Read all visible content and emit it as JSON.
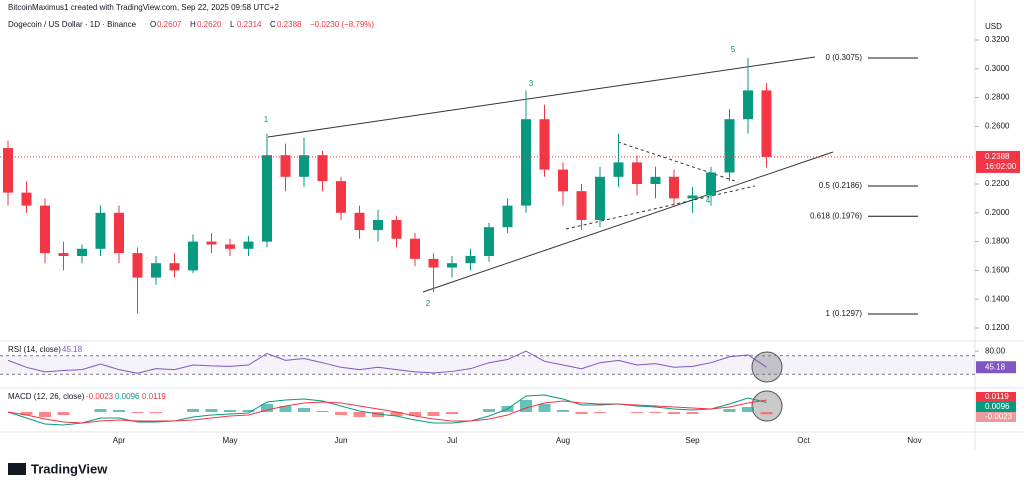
{
  "header": {
    "author": "BitcoinMaximus1 created with TradingView.com, Sep 22, 2025 09:58 UTC+2",
    "symbol": "Dogecoin / US Dollar · 1D · Binance",
    "ohlc": [
      {
        "key": "O",
        "value": "0.2607"
      },
      {
        "key": "H",
        "value": "0.2620"
      },
      {
        "key": "L",
        "value": "0.2314"
      },
      {
        "key": "C",
        "value": "0.2388"
      }
    ],
    "change": "−0.0230 (−8.79%)"
  },
  "footer": {
    "brand": "TradingView"
  },
  "chart_data": {
    "type": "candlestick",
    "currency": "USD",
    "up_color": "#089981",
    "down_color": "#f23645",
    "categories": [
      null,
      null,
      null,
      null,
      null,
      null,
      "Apr",
      null,
      null,
      null,
      null,
      null,
      "May",
      null,
      null,
      null,
      null,
      null,
      "Jun",
      null,
      null,
      null,
      null,
      null,
      "Jul",
      null,
      null,
      null,
      null,
      null,
      "Aug",
      null,
      null,
      null,
      null,
      null,
      null,
      "Sep",
      null,
      null,
      null,
      null,
      null,
      "Oct",
      null,
      null,
      null,
      null,
      null,
      "Nov",
      null,
      null
    ],
    "open": [
      0.245,
      0.214,
      0.205,
      0.172,
      0.17,
      0.175,
      0.2,
      0.172,
      0.155,
      0.165,
      0.16,
      0.18,
      0.178,
      0.175,
      0.18,
      0.24,
      0.225,
      0.24,
      0.222,
      0.2,
      0.188,
      0.195,
      0.182,
      0.168,
      0.162,
      0.165,
      0.17,
      0.19,
      0.205,
      0.265,
      0.23,
      0.215,
      0.195,
      0.225,
      0.235,
      0.22,
      0.225,
      0.21,
      0.212,
      0.228,
      0.265,
      0.285,
      null,
      null,
      null,
      null,
      null,
      null,
      null,
      null,
      null,
      null
    ],
    "high": [
      0.25,
      0.222,
      0.21,
      0.18,
      0.178,
      0.205,
      0.205,
      0.176,
      0.17,
      0.172,
      0.185,
      0.186,
      0.182,
      0.184,
      0.255,
      0.248,
      0.252,
      0.243,
      0.225,
      0.205,
      0.202,
      0.198,
      0.186,
      0.172,
      0.17,
      0.175,
      0.193,
      0.21,
      0.285,
      0.275,
      0.235,
      0.22,
      0.232,
      0.255,
      0.24,
      0.232,
      0.23,
      0.218,
      0.232,
      0.272,
      0.3075,
      0.29,
      null,
      null,
      null,
      null,
      null,
      null,
      null,
      null,
      null,
      null
    ],
    "low": [
      0.205,
      0.2,
      0.165,
      0.16,
      0.165,
      0.17,
      0.165,
      0.13,
      0.15,
      0.155,
      0.158,
      0.172,
      0.17,
      0.17,
      0.176,
      0.215,
      0.218,
      0.215,
      0.195,
      0.182,
      0.18,
      0.176,
      0.163,
      0.145,
      0.155,
      0.16,
      0.166,
      0.186,
      0.2,
      0.225,
      0.205,
      0.188,
      0.19,
      0.218,
      0.212,
      0.21,
      0.205,
      0.2,
      0.205,
      0.222,
      0.255,
      0.2314,
      null,
      null,
      null,
      null,
      null,
      null,
      null,
      null,
      null,
      null
    ],
    "close": [
      0.214,
      0.205,
      0.172,
      0.17,
      0.175,
      0.2,
      0.172,
      0.155,
      0.165,
      0.16,
      0.18,
      0.178,
      0.175,
      0.18,
      0.24,
      0.225,
      0.24,
      0.222,
      0.2,
      0.188,
      0.195,
      0.182,
      0.168,
      0.162,
      0.165,
      0.17,
      0.19,
      0.205,
      0.265,
      0.23,
      0.215,
      0.195,
      0.225,
      0.235,
      0.22,
      0.225,
      0.21,
      0.212,
      0.228,
      0.265,
      0.285,
      0.2388,
      null,
      null,
      null,
      null,
      null,
      null,
      null,
      null,
      null,
      null
    ],
    "ylim": [
      0.12,
      0.32
    ],
    "yticks": [
      {
        "value": 0.12,
        "label": "0.1200"
      },
      {
        "value": 0.14,
        "label": "0.1400"
      },
      {
        "value": 0.16,
        "label": "0.1600"
      },
      {
        "value": 0.18,
        "label": "0.1800"
      },
      {
        "value": 0.2,
        "label": "0.2000"
      },
      {
        "value": 0.22,
        "label": "0.2200"
      },
      {
        "value": 0.24,
        "label": "0.2400"
      },
      {
        "value": 0.26,
        "label": "0.2600"
      },
      {
        "value": 0.28,
        "label": "0.2800"
      },
      {
        "value": 0.3,
        "label": "0.3000"
      },
      {
        "value": 0.32,
        "label": "0.3200"
      }
    ],
    "last_price": {
      "value": 0.2388,
      "label": "0.2388",
      "countdown": "16:02:00"
    },
    "fib_levels": [
      {
        "value": 0.3075,
        "label": "0 (0.3075)"
      },
      {
        "value": 0.2186,
        "label": "0.5 (0.2186)"
      },
      {
        "value": 0.1976,
        "label": "0.618 (0.1976)"
      },
      {
        "value": 0.1297,
        "label": "1 (0.1297)"
      }
    ],
    "wave_labels": [
      "1",
      "2",
      "3",
      "4",
      "5"
    ],
    "rsi": {
      "title": "RSI (14, close)",
      "last": "45.18",
      "color": "#7e57c2",
      "ylim": [
        0,
        100
      ],
      "bands": [
        30,
        70
      ],
      "yticks": [
        {
          "value": 80,
          "label": "80.00"
        }
      ],
      "values": [
        60,
        45,
        35,
        38,
        40,
        52,
        40,
        32,
        42,
        40,
        50,
        48,
        47,
        50,
        75,
        60,
        64,
        55,
        45,
        40,
        45,
        40,
        35,
        33,
        36,
        42,
        55,
        62,
        80,
        58,
        50,
        42,
        55,
        60,
        50,
        53,
        45,
        47,
        55,
        68,
        72,
        45.18,
        null,
        null,
        null,
        null,
        null,
        null,
        null,
        null,
        null,
        null
      ]
    },
    "macd": {
      "title": "MACD (12, 26, close)",
      "ylim": [
        -0.02,
        0.02
      ],
      "hist_up_color": "#26a69a",
      "hist_down_color": "#ff5252",
      "hist": {
        "last": "-0.0023",
        "values": [
          0,
          -0.003,
          -0.005,
          -0.003,
          0,
          0.003,
          0.002,
          -0.001,
          -0.001,
          0,
          0.003,
          0.003,
          0.002,
          0.002,
          0.008,
          0.006,
          0.004,
          0.001,
          -0.003,
          -0.005,
          -0.005,
          -0.004,
          -0.004,
          -0.004,
          -0.002,
          0,
          0.003,
          0.006,
          0.012,
          0.008,
          0.002,
          -0.002,
          -0.001,
          0,
          -0.001,
          -0.001,
          -0.002,
          -0.002,
          0,
          0.003,
          0.005,
          -0.0023,
          null,
          null,
          null,
          null,
          null,
          null,
          null,
          null,
          null,
          null
        ]
      },
      "line": {
        "last": "0.0096",
        "color": "#089981",
        "values": [
          0,
          -0.006,
          -0.012,
          -0.013,
          -0.011,
          -0.006,
          -0.006,
          -0.01,
          -0.01,
          -0.009,
          -0.005,
          -0.003,
          -0.002,
          -0.001,
          0.01,
          0.012,
          0.013,
          0.011,
          0.006,
          0.001,
          -0.002,
          -0.004,
          -0.008,
          -0.011,
          -0.011,
          -0.009,
          -0.004,
          0.003,
          0.016,
          0.017,
          0.013,
          0.007,
          0.007,
          0.008,
          0.006,
          0.005,
          0.003,
          0.002,
          0.003,
          0.008,
          0.014,
          0.0096,
          null,
          null,
          null,
          null,
          null,
          null,
          null,
          null,
          null,
          null
        ]
      },
      "signal": {
        "last": "0.0119",
        "color": "#f23645",
        "values": [
          0,
          -0.003,
          -0.007,
          -0.01,
          -0.011,
          -0.009,
          -0.008,
          -0.009,
          -0.009,
          -0.009,
          -0.008,
          -0.006,
          -0.004,
          -0.003,
          0.002,
          0.006,
          0.009,
          0.01,
          0.009,
          0.006,
          0.003,
          0,
          -0.004,
          -0.007,
          -0.009,
          -0.009,
          -0.007,
          -0.003,
          0.004,
          0.009,
          0.011,
          0.009,
          0.008,
          0.008,
          0.007,
          0.006,
          0.005,
          0.004,
          0.003,
          0.005,
          0.009,
          0.0119,
          null,
          null,
          null,
          null,
          null,
          null,
          null,
          null,
          null,
          null
        ]
      }
    }
  }
}
